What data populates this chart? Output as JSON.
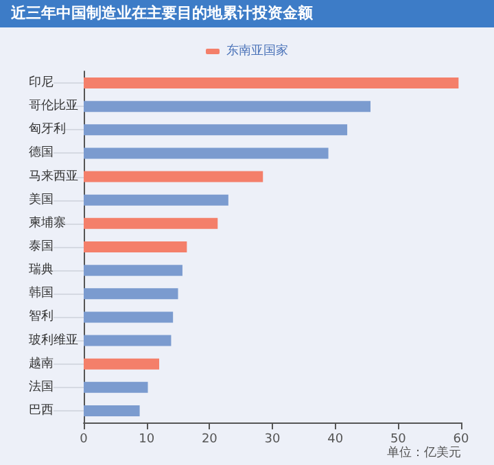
{
  "chart_data": {
    "type": "bar",
    "orientation": "horizontal",
    "stacked": true,
    "title": "近三年中国制造业在主要目的地累计投资金额",
    "categories": [
      "印尼",
      "哥伦比亚",
      "匈牙利",
      "德国",
      "马来西亚",
      "美国",
      "柬埔寨",
      "泰国",
      "瑞典",
      "韩国",
      "智利",
      "玻利维亚",
      "越南",
      "法国",
      "巴西"
    ],
    "series": [
      {
        "name": "东南亚国家",
        "color": "#f47f6a",
        "values": [
          59.6,
          null,
          null,
          null,
          28.5,
          null,
          21.3,
          16.4,
          null,
          null,
          null,
          null,
          12.0,
          null,
          null
        ]
      },
      {
        "color": "#7b9bcf",
        "values": [
          null,
          45.6,
          41.9,
          38.9,
          null,
          23.0,
          null,
          null,
          15.7,
          15.0,
          14.2,
          13.9,
          null,
          10.2,
          8.9
        ]
      }
    ],
    "xlim": [
      0,
      60
    ],
    "xticks": [
      0,
      10,
      20,
      30,
      40,
      50,
      60
    ],
    "grid": false,
    "legend": "top",
    "annotations": [
      "单位：亿美元"
    ]
  }
}
